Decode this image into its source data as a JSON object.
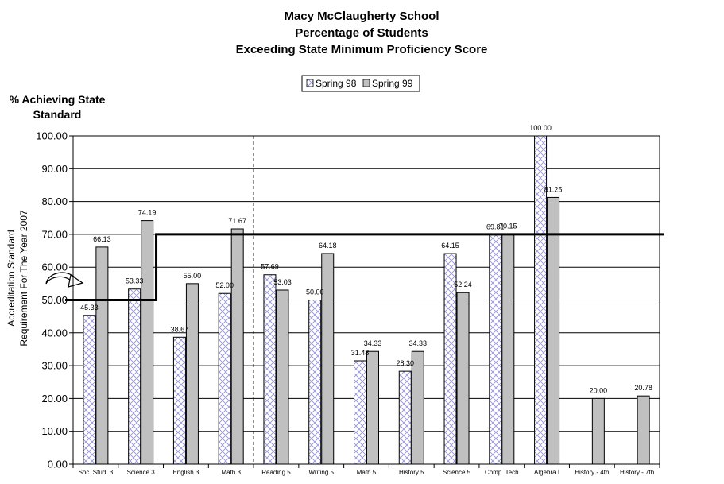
{
  "chart_data": {
    "type": "bar",
    "title": [
      "Macy McClaugherty School",
      "Percentage of Students",
      "Exceeding State Minimum Proficiency Score"
    ],
    "ylabel": [
      "% Achieving State",
      "Standard"
    ],
    "side_label": [
      "Accreditation Standard",
      "Requirement For The Year 2007"
    ],
    "legend_position": "top-center",
    "ylim": [
      0,
      100
    ],
    "ytick_labels": [
      "0.00",
      "10.00",
      "20.00",
      "30.00",
      "40.00",
      "50.00",
      "60.00",
      "70.00",
      "80.00",
      "90.00",
      "100.00"
    ],
    "grid": true,
    "categories": [
      "Soc. Stud. 3",
      "Science 3",
      "English 3",
      "Math 3",
      "Reading 5",
      "Writing 5",
      "Math 5",
      "History 5",
      "Science 5",
      "Comp. Tech",
      "Algebra I",
      "History - 4th",
      "History - 7th"
    ],
    "series": [
      {
        "name": "Spring 98",
        "values": [
          45.33,
          53.33,
          38.67,
          52.0,
          57.69,
          50.0,
          31.48,
          28.3,
          64.15,
          69.81,
          100.0,
          null,
          null
        ],
        "labels": [
          "45.33",
          "53.33",
          "38.67",
          "52.00",
          "57.69",
          "50.00",
          "31.48",
          "28.30",
          "64.15",
          "69.81",
          "100.00",
          "",
          ""
        ],
        "color": "#ffffff",
        "pattern": "crosshatch-blue"
      },
      {
        "name": "Spring 99",
        "values": [
          66.13,
          74.19,
          55.0,
          71.67,
          53.03,
          64.18,
          34.33,
          34.33,
          52.24,
          70.15,
          81.25,
          20.0,
          20.78
        ],
        "labels": [
          "66.13",
          "74.19",
          "55.00",
          "71.67",
          "53.03",
          "64.18",
          "34.33",
          "34.33",
          "52.24",
          "70.15",
          "81.25",
          "20.00",
          "20.78"
        ],
        "color": "#c0c0c0"
      }
    ],
    "standard_line": {
      "before": 50,
      "after": 70
    }
  }
}
